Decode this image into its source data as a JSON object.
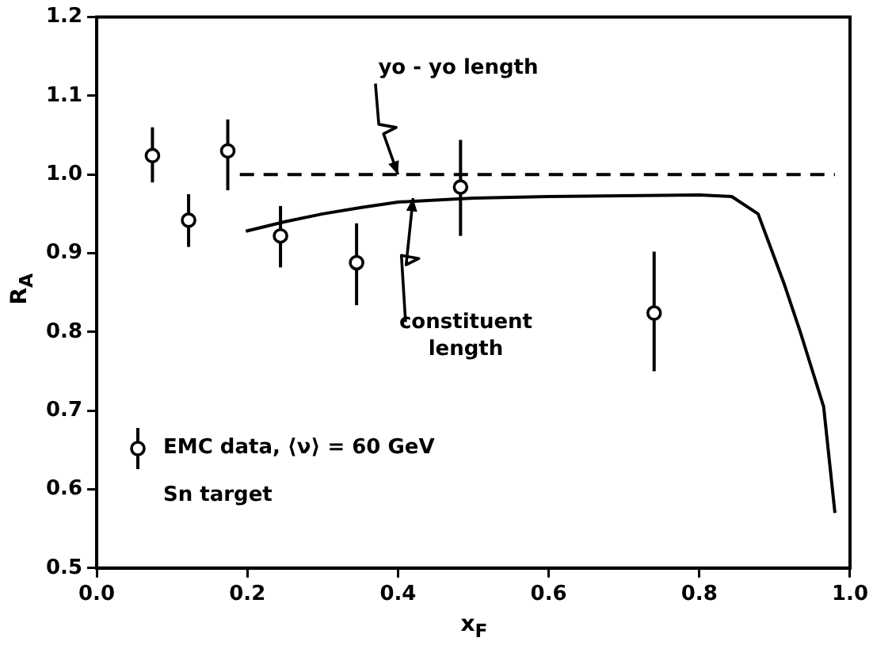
{
  "chart_data": {
    "type": "scatter",
    "xlabel": "x$_{F}$",
    "ylabel": "R$_{A}$",
    "xlim": [
      0,
      1
    ],
    "ylim": [
      0.5,
      1.2
    ],
    "xticks": [
      {
        "value": 0,
        "label": "0.0"
      },
      {
        "value": 0.2,
        "label": "0.2"
      },
      {
        "value": 0.4,
        "label": "0.4"
      },
      {
        "value": 0.6,
        "label": "0.6"
      },
      {
        "value": 0.8,
        "label": "0.8"
      },
      {
        "value": 1,
        "label": "1.0"
      }
    ],
    "yticks": [
      {
        "value": 0.5,
        "label": "0.5"
      },
      {
        "value": 0.6,
        "label": "0.6"
      },
      {
        "value": 0.7,
        "label": "0.7"
      },
      {
        "value": 0.8,
        "label": "0.8"
      },
      {
        "value": 0.9,
        "label": "0.9"
      },
      {
        "value": 1,
        "label": "1.0"
      },
      {
        "value": 1.1,
        "label": "1.1"
      },
      {
        "value": 1.2,
        "label": "1.2"
      }
    ],
    "grid": false,
    "legend": "bottom left",
    "series": [
      {
        "name": "EMC data,  ⟨ν⟩ = 60 GeV\nSn target",
        "type": "scatter",
        "color": "#000000",
        "marker": "circle",
        "x": [
          0.074,
          0.122,
          0.174,
          0.244,
          0.345,
          0.483,
          0.74
        ],
        "values": [
          1.024,
          0.942,
          1.03,
          0.922,
          0.888,
          0.984,
          0.824
        ],
        "errors": [
          [
            0.99,
            1.06
          ],
          [
            0.908,
            0.975
          ],
          [
            0.98,
            1.07
          ],
          [
            0.882,
            0.96
          ],
          [
            0.834,
            0.938
          ],
          [
            0.922,
            1.044
          ],
          [
            0.75,
            0.902
          ]
        ]
      },
      {
        "type": "line",
        "color": "#000000",
        "marker": "none",
        "line_style": "dashed",
        "x": [
          0.19,
          0.98
        ],
        "values": [
          1.0,
          1.0
        ]
      },
      {
        "type": "line",
        "color": "#000000",
        "marker": "none",
        "line_style": "solid",
        "x": [
          0.198,
          0.25,
          0.3,
          0.35,
          0.4,
          0.5,
          0.6,
          0.7,
          0.8,
          0.843,
          0.878,
          0.913,
          0.934,
          0.965,
          0.98
        ],
        "values": [
          0.928,
          0.94,
          0.95,
          0.958,
          0.965,
          0.97,
          0.972,
          0.973,
          0.974,
          0.972,
          0.95,
          0.86,
          0.8,
          0.705,
          0.57
        ]
      }
    ],
    "annotations": [
      {
        "text": "yo - yo  length",
        "x": 0.4,
        "y": 1.0
      },
      {
        "text": "constituent\nlength",
        "x": 0.42,
        "y": 0.97
      }
    ]
  }
}
